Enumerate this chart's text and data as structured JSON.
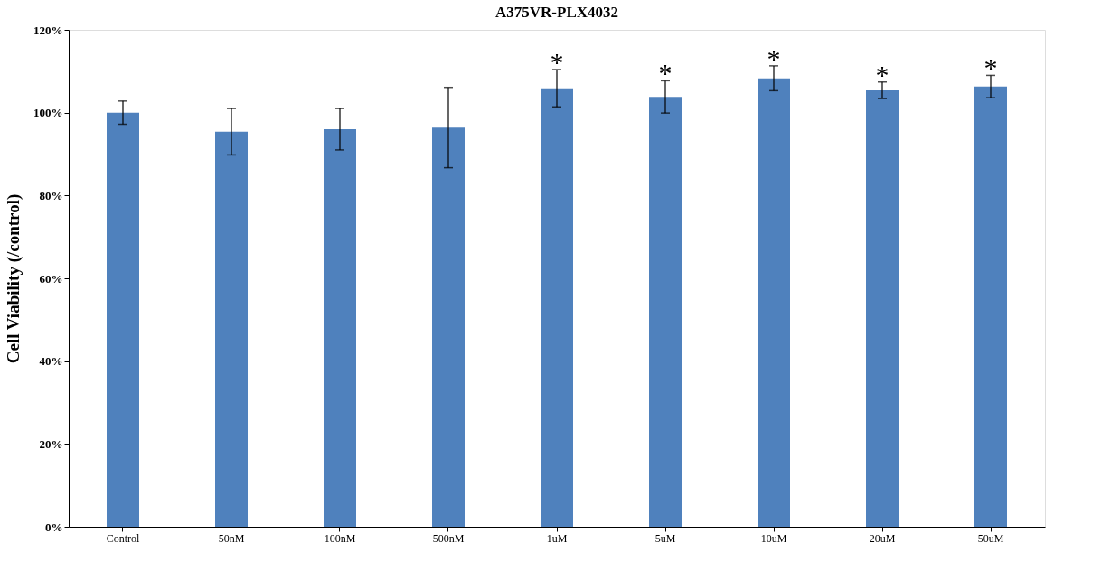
{
  "chart_data": {
    "type": "bar",
    "title": "A375VR-PLX4032",
    "ylabel": "Cell Viability  (/control)",
    "categories": [
      "Control",
      "50nM",
      "100nM",
      "500nM",
      "1uM",
      "5uM",
      "10uM",
      "20uM",
      "50uM"
    ],
    "series": [
      {
        "color": "#4f81bd",
        "values": [
          100,
          95.4,
          96.0,
          96.4,
          105.9,
          103.8,
          108.3,
          105.4,
          106.3
        ],
        "errors": [
          2.8,
          5.6,
          5,
          9.7,
          4.5,
          3.9,
          3,
          2,
          2.7
        ],
        "value_labels": [
          null,
          null,
          null,
          null,
          "*",
          "*",
          "*",
          "*",
          "*"
        ]
      }
    ],
    "ylim": [
      0,
      120
    ],
    "yticks": [
      {
        "value": 0,
        "label": "0%"
      },
      {
        "value": 20,
        "label": "20%"
      },
      {
        "value": 40,
        "label": "40%"
      },
      {
        "value": 60,
        "label": "60%"
      },
      {
        "value": 80,
        "label": "80%"
      },
      {
        "value": 100,
        "label": "100%"
      },
      {
        "value": 120,
        "label": "120%"
      }
    ],
    "grid": false
  }
}
